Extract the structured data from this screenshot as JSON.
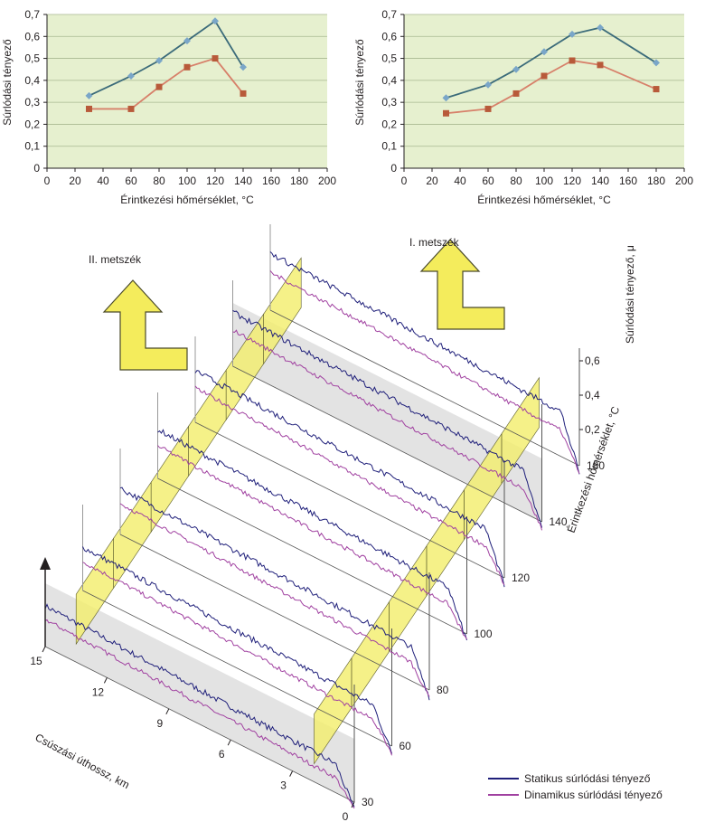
{
  "chart_data": [
    {
      "type": "line",
      "ylabel": "Súrlódási tényező",
      "xlabel": "Érintkezési hőmérséklet, °C",
      "xlim": [
        0,
        200
      ],
      "ylim": [
        0,
        0.7
      ],
      "xticks": [
        "0",
        "20",
        "40",
        "60",
        "80",
        "100",
        "120",
        "140",
        "160",
        "180",
        "200"
      ],
      "yticks": [
        "0",
        "0,1",
        "0,2",
        "0,3",
        "0,4",
        "0,5",
        "0,6",
        "0,7"
      ],
      "series": [
        {
          "marker": "diamond",
          "color": "#3b6b7a",
          "marker_color": "#7aa6c8",
          "points": [
            [
              30,
              0.33
            ],
            [
              60,
              0.42
            ],
            [
              80,
              0.49
            ],
            [
              100,
              0.58
            ],
            [
              120,
              0.67
            ],
            [
              140,
              0.46
            ]
          ]
        },
        {
          "marker": "square",
          "color": "#d7806a",
          "marker_color": "#b85a3a",
          "points": [
            [
              30,
              0.27
            ],
            [
              60,
              0.27
            ],
            [
              80,
              0.37
            ],
            [
              100,
              0.46
            ],
            [
              120,
              0.5
            ],
            [
              140,
              0.34
            ]
          ]
        }
      ]
    },
    {
      "type": "line",
      "ylabel": "Súrlódási tényező",
      "xlabel": "Érintkezési hőmérséklet, °C",
      "xlim": [
        0,
        200
      ],
      "ylim": [
        0,
        0.7
      ],
      "xticks": [
        "0",
        "20",
        "40",
        "60",
        "80",
        "100",
        "120",
        "140",
        "160",
        "180",
        "200"
      ],
      "yticks": [
        "0",
        "0,1",
        "0,2",
        "0,3",
        "0,4",
        "0,5",
        "0,6",
        "0,7"
      ],
      "series": [
        {
          "marker": "diamond",
          "color": "#3b6b7a",
          "marker_color": "#7aa6c8",
          "points": [
            [
              30,
              0.32
            ],
            [
              60,
              0.38
            ],
            [
              80,
              0.45
            ],
            [
              100,
              0.53
            ],
            [
              120,
              0.61
            ],
            [
              140,
              0.64
            ],
            [
              180,
              0.48
            ]
          ]
        },
        {
          "marker": "square",
          "color": "#d7806a",
          "marker_color": "#b85a3a",
          "points": [
            [
              30,
              0.25
            ],
            [
              60,
              0.27
            ],
            [
              80,
              0.34
            ],
            [
              100,
              0.42
            ],
            [
              120,
              0.49
            ],
            [
              140,
              0.47
            ],
            [
              180,
              0.36
            ]
          ]
        }
      ]
    },
    {
      "type": "line",
      "view": "3d-waterfall",
      "temperature_axis_label": "Érintkezési hőmérséklet, °C",
      "temperatures": [
        "30",
        "60",
        "80",
        "100",
        "120",
        "140",
        "180"
      ],
      "distance_axis_label": "Csúszási úthossz, km",
      "distance_ticks": [
        "0",
        "3",
        "6",
        "9",
        "12",
        "15"
      ],
      "mu_axis_label": "Súrlódási tényező, μ",
      "mu_ticks": [
        "0,2",
        "0,4",
        "0,6"
      ],
      "section_labels": {
        "first": "I. metszék",
        "second": "II. metszék"
      },
      "colors": {
        "static": "#1f1f7a",
        "dynamic": "#a040a0",
        "section": "#f3ee6a",
        "plane": "#d9d9d9"
      },
      "legend": [
        "Statikus súrlódási tényező",
        "Dinamikus súrlódási tényező"
      ]
    }
  ]
}
